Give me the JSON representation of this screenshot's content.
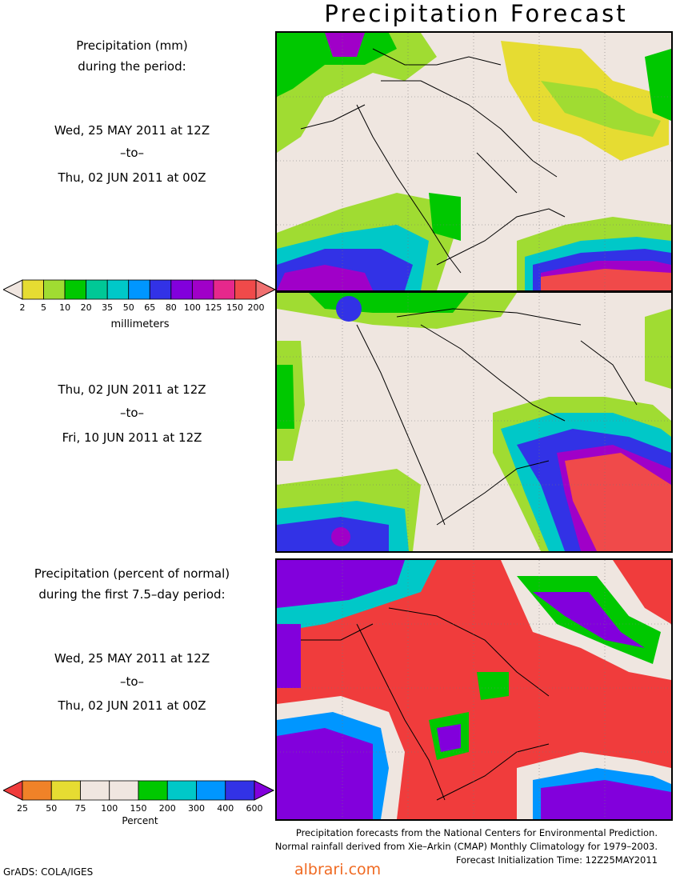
{
  "title": "Precipitation Forecast",
  "panel1": {
    "header_line1": "Precipitation (mm)",
    "header_line2": "during the period:",
    "start": "Wed, 25 MAY 2011 at 12Z",
    "to": "–to–",
    "end": "Thu, 02 JUN 2011 at 00Z"
  },
  "panel2": {
    "start": "Thu, 02 JUN 2011 at 12Z",
    "to": "–to–",
    "end": "Fri, 10 JUN 2011 at 12Z"
  },
  "panel3": {
    "header_line1": "Precipitation (percent of normal)",
    "header_line2": "during the first 7.5–day period:",
    "start": "Wed, 25 MAY 2011 at 12Z",
    "to": "–to–",
    "end": "Thu, 02 JUN 2011 at 00Z"
  },
  "legend_mm": {
    "unit": "millimeters",
    "ticks": [
      "2",
      "5",
      "10",
      "20",
      "35",
      "50",
      "65",
      "80",
      "100",
      "125",
      "150",
      "200"
    ],
    "colors": [
      "#f0e6e0",
      "#e6dc32",
      "#a0dc32",
      "#00c800",
      "#00c896",
      "#00c8c8",
      "#0096ff",
      "#3232e6",
      "#8200dc",
      "#a000c8",
      "#e6288c",
      "#f04a4a",
      "#f07070"
    ]
  },
  "legend_pct": {
    "unit": "Percent",
    "ticks": [
      "25",
      "50",
      "75",
      "100",
      "150",
      "200",
      "300",
      "400",
      "600"
    ],
    "colors": [
      "#f03c3c",
      "#f08228",
      "#e6dc32",
      "#f0e6e0",
      "#f0e6e0",
      "#00c800",
      "#00c8c8",
      "#0096ff",
      "#3232e6",
      "#8200dc"
    ]
  },
  "footer": {
    "line1": "Precipitation forecasts from the National Centers for Environmental Prediction.",
    "line2": "Normal rainfall derived from Xie–Arkin (CMAP) Monthly Climatology for 1979–2003.",
    "line3": "Forecast Initialization Time: 12Z25MAY2011"
  },
  "grads": "GrADS: COLA/IGES",
  "watermark": "albrari.com"
}
